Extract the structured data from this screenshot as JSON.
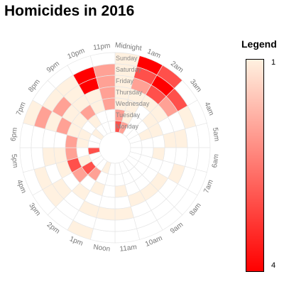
{
  "title": "Homicides in 2016",
  "legend": {
    "title": "Legend",
    "min_label": "1",
    "max_label": "4",
    "min_color": "#fff1e0",
    "max_color": "#ff0000"
  },
  "chart_data": {
    "type": "heatmap",
    "layout": "radial",
    "title": "Homicides in 2016",
    "hours": [
      "Midnight",
      "1am",
      "2am",
      "3am",
      "4am",
      "5am",
      "6am",
      "7am",
      "8am",
      "9am",
      "10am",
      "11am",
      "Noon",
      "1pm",
      "2pm",
      "3pm",
      "4pm",
      "5pm",
      "6pm",
      "7pm",
      "8pm",
      "9pm",
      "10pm",
      "11pm"
    ],
    "days_outer_to_inner": [
      "Sunday",
      "Saturday",
      "Friday",
      "Thursday",
      "Wednesday",
      "Tuesday",
      "Monday"
    ],
    "color_scale": {
      "min": 1,
      "max": 4,
      "low_color": "#fff1e0",
      "high_color": "#ff0000"
    },
    "values": {
      "Sunday": [
        1,
        4,
        3,
        0,
        0,
        0,
        0,
        0,
        0,
        0,
        0,
        0,
        0,
        1,
        0,
        0,
        0,
        0,
        0,
        1,
        0,
        0,
        0,
        0
      ],
      "Saturday": [
        1,
        3,
        4,
        3,
        1,
        0,
        0,
        0,
        0,
        0,
        0,
        0,
        0,
        0,
        0,
        1,
        1,
        0,
        0,
        2,
        1,
        1,
        4,
        2
      ],
      "Friday": [
        1,
        2,
        3,
        2,
        0,
        1,
        0,
        1,
        0,
        0,
        0,
        1,
        1,
        1,
        0,
        1,
        0,
        1,
        0,
        1,
        2,
        1,
        4,
        2
      ],
      "Thursday": [
        1,
        1,
        1,
        1,
        0,
        1,
        0,
        0,
        1,
        1,
        1,
        0,
        0,
        0,
        1,
        0,
        1,
        1,
        0,
        2,
        1,
        1,
        1,
        2
      ],
      "Wednesday": [
        1,
        1,
        0,
        1,
        1,
        0,
        1,
        0,
        0,
        0,
        0,
        1,
        0,
        1,
        0,
        2,
        3,
        2,
        2,
        1,
        1,
        2,
        1,
        2
      ],
      "Tuesday": [
        2,
        1,
        0,
        0,
        1,
        0,
        0,
        0,
        0,
        0,
        0,
        0,
        0,
        0,
        2,
        3,
        1,
        0,
        1,
        1,
        0,
        1,
        0,
        0
      ],
      "Monday": [
        3,
        2,
        0,
        0,
        0,
        0,
        0,
        0,
        0,
        0,
        0,
        0,
        0,
        1,
        0,
        0,
        0,
        3,
        0,
        0,
        1,
        0,
        0,
        0
      ]
    }
  }
}
